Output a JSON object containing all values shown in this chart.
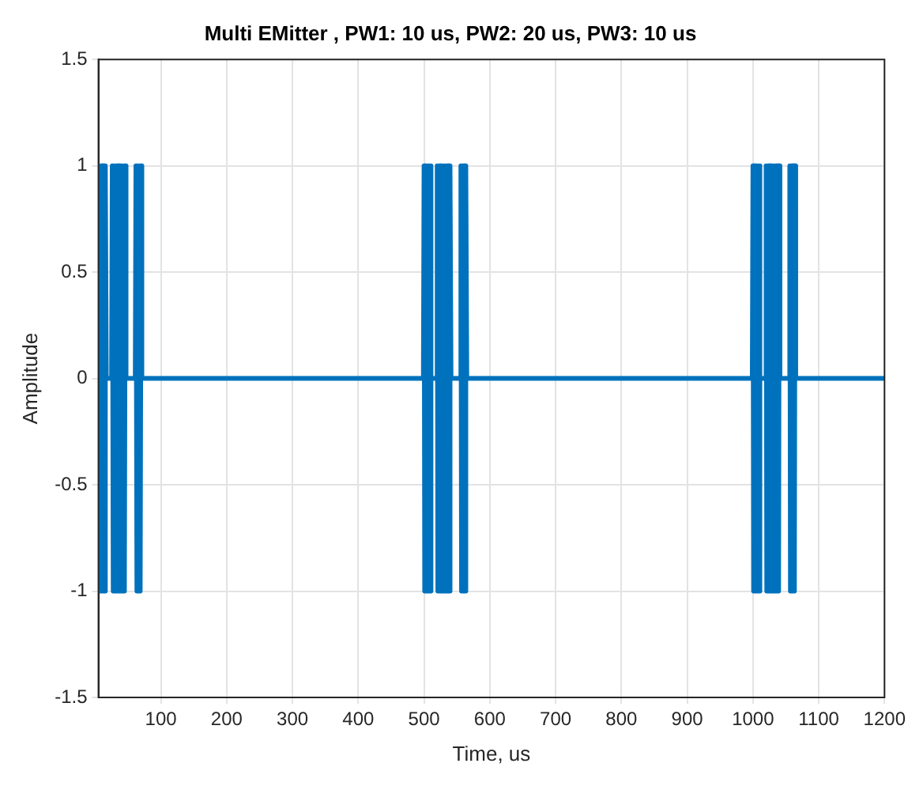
{
  "chart_data": {
    "type": "line",
    "title": "Multi EMitter , PW1: 10 us, PW2: 20 us, PW3: 10 us",
    "xlabel": "Time, us",
    "ylabel": "Amplitude",
    "xlim": [
      5,
      1200
    ],
    "xticks": [
      100,
      200,
      300,
      400,
      500,
      600,
      700,
      800,
      900,
      1000,
      1100,
      1200
    ],
    "ylim": [
      -1.5,
      1.5
    ],
    "yticks": [
      -1.5,
      -1,
      -0.5,
      0,
      0.5,
      1,
      1.5
    ],
    "grid": true,
    "marker": "none",
    "line_style": "solid",
    "series": [
      {
        "color": "#0072bd",
        "x": [
          5,
          6,
          7,
          8,
          9,
          10,
          11,
          12,
          13,
          14,
          15,
          16,
          17,
          25,
          26,
          27,
          28,
          29,
          30,
          31,
          32,
          33,
          34,
          35,
          36,
          37,
          38,
          39,
          40,
          41,
          42,
          43,
          44,
          45,
          46,
          47,
          61,
          62,
          63,
          64,
          65,
          66,
          67,
          68,
          69,
          70,
          71,
          499,
          500,
          501,
          502,
          503,
          504,
          505,
          506,
          507,
          508,
          509,
          510,
          511,
          519,
          520,
          521,
          522,
          523,
          524,
          525,
          526,
          527,
          528,
          529,
          530,
          531,
          532,
          533,
          534,
          535,
          536,
          537,
          538,
          539,
          540,
          541,
          555,
          556,
          557,
          558,
          559,
          560,
          561,
          562,
          563,
          564,
          565,
          999,
          1000,
          1001,
          1002,
          1003,
          1004,
          1005,
          1006,
          1007,
          1008,
          1009,
          1010,
          1011,
          1019,
          1020,
          1021,
          1022,
          1023,
          1024,
          1025,
          1026,
          1027,
          1028,
          1029,
          1030,
          1031,
          1032,
          1033,
          1034,
          1035,
          1036,
          1037,
          1038,
          1039,
          1040,
          1041,
          1055,
          1056,
          1057,
          1058,
          1059,
          1060,
          1061,
          1062,
          1063,
          1064,
          1065,
          1200
        ],
        "values": [
          0.25,
          1,
          -1,
          1,
          -1,
          1,
          -1,
          1,
          -1,
          1,
          -1,
          1,
          0,
          0,
          1,
          -1,
          1,
          -1,
          1,
          -1,
          1,
          -1,
          1,
          -1,
          1,
          -1,
          1,
          -1,
          1,
          -1,
          1,
          -1,
          1,
          -1,
          1,
          0,
          0,
          1,
          -1,
          1,
          -1,
          1,
          -1,
          1,
          -1,
          1,
          0,
          0,
          1,
          -1,
          1,
          -1,
          1,
          -1,
          1,
          -1,
          1,
          -1,
          1,
          0,
          0,
          1,
          -1,
          1,
          -1,
          1,
          -1,
          1,
          -1,
          1,
          -1,
          1,
          -1,
          1,
          -1,
          1,
          -1,
          1,
          -1,
          1,
          -1,
          1,
          0,
          0,
          1,
          -1,
          1,
          -1,
          1,
          -1,
          1,
          -1,
          1,
          0,
          0,
          1,
          -1,
          1,
          -1,
          1,
          -1,
          1,
          -1,
          1,
          -1,
          1,
          0,
          0,
          1,
          -1,
          1,
          -1,
          1,
          -1,
          1,
          -1,
          1,
          -1,
          1,
          -1,
          1,
          -1,
          1,
          -1,
          1,
          -1,
          1,
          -1,
          1,
          0,
          0,
          1,
          -1,
          1,
          -1,
          1,
          -1,
          1,
          -1,
          1,
          0,
          0
        ]
      }
    ]
  }
}
